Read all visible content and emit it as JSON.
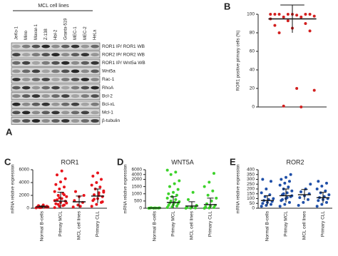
{
  "blot": {
    "panel_label": "A",
    "header": "MCL cell lines",
    "lanes": [
      "JeKo-1",
      "Mino",
      "Mavar-1",
      "Z-138",
      "Hbl-2",
      "Granta-519",
      "MEC-1",
      "MEC-2",
      "HeLa"
    ],
    "rows": [
      "ROR1 IP/ ROR1 WB",
      "ROR2 IP/ ROR2 WB",
      "ROR1 IP/ Wnt5a WB",
      "Wnt5a",
      "Rac-1",
      "RhoA",
      "Bcl-2",
      "Bcl-xL",
      "Mcl-1",
      "β-tubulin"
    ]
  },
  "chart_data": [
    {
      "type": "dot",
      "panel_label": "B",
      "y_label": "ROR1 positive primary cells (%)",
      "color": "#d2201f",
      "ylim": [
        0,
        100
      ],
      "yticks": [
        0,
        20,
        40,
        60,
        80,
        100
      ],
      "groups": [
        {
          "values": [
            100,
            100,
            100,
            100,
            100,
            100,
            100,
            99,
            98,
            97,
            97,
            95,
            93,
            90,
            88,
            85,
            82,
            80,
            20,
            18,
            1,
            0
          ],
          "mean": 95,
          "sd": 15
        }
      ]
    },
    {
      "type": "dot",
      "panel_label": "C",
      "title": "ROR1",
      "y_label": "mRNA relative expression",
      "color": "#e8141c",
      "categories": [
        "Normal B-cells",
        "Primay MCL",
        "MCL cell lines",
        "Primary CLL"
      ],
      "ylim": [
        0,
        6000
      ],
      "yticks": [
        0,
        2000,
        4000,
        6000
      ],
      "groups": [
        {
          "values": [
            50,
            100,
            150,
            200,
            250,
            300,
            400,
            500,
            200,
            100
          ],
          "mean": 200,
          "sd": 150
        },
        {
          "values": [
            100,
            300,
            500,
            700,
            900,
            1100,
            1300,
            1500,
            1800,
            2000,
            2300,
            2600,
            3000,
            3300,
            3700,
            4100,
            4600,
            5200,
            5800,
            800,
            600,
            400,
            1200,
            1600,
            2100
          ],
          "mean": 1100,
          "sd": 1400
        },
        {
          "values": [
            200,
            500,
            900,
            1200,
            1800,
            2000,
            2600,
            300
          ],
          "mean": 1000,
          "sd": 900
        },
        {
          "values": [
            300,
            600,
            900,
            1200,
            1500,
            1800,
            2100,
            2400,
            2700,
            3000,
            3300,
            3600,
            4000,
            4500,
            5000,
            5500,
            1000,
            1400,
            2000,
            2500
          ],
          "mean": 1900,
          "sd": 1100
        }
      ]
    },
    {
      "type": "dot",
      "panel_label": "D",
      "title": "WNT5A",
      "y_label": "mRNA relative expression",
      "color": "#3cd22a",
      "categories": [
        "Normal B-cells",
        "Primay MCL",
        "MCL cell lines",
        "Primary CLL"
      ],
      "ylim": [
        0,
        6000
      ],
      "yticks": [
        0,
        500,
        1000,
        1500,
        2000,
        4000,
        6000
      ],
      "axis_break": 2000,
      "groups": [
        {
          "values": [
            0,
            5,
            10,
            15,
            20,
            25,
            30,
            10
          ],
          "mean": 15,
          "sd": 10
        },
        {
          "values": [
            50,
            100,
            150,
            200,
            250,
            300,
            350,
            400,
            450,
            500,
            600,
            700,
            800,
            900,
            1000,
            1100,
            1300,
            1500,
            1700,
            1900,
            4000,
            5000,
            5800
          ],
          "mean": 400,
          "sd": 400
        },
        {
          "values": [
            0,
            10,
            20,
            50,
            100,
            200,
            600,
            1100
          ],
          "mean": 150,
          "sd": 300
        },
        {
          "values": [
            0,
            20,
            50,
            100,
            150,
            200,
            300,
            500,
            700,
            900,
            1200,
            1500,
            1800,
            4500
          ],
          "mean": 250,
          "sd": 450
        }
      ]
    },
    {
      "type": "dot",
      "panel_label": "E",
      "title": "ROR2",
      "y_label": "mRNA relative expression",
      "color": "#1f4fa8",
      "categories": [
        "Normal B-cells",
        "Primay MCL",
        "MCL cell lines",
        "Primary CLL"
      ],
      "ylim": [
        0,
        400
      ],
      "yticks": [
        0,
        50,
        100,
        150,
        200,
        250,
        300,
        350,
        400
      ],
      "groups": [
        {
          "values": [
            20,
            30,
            40,
            50,
            60,
            70,
            80,
            90,
            100,
            120,
            140,
            160,
            200,
            280,
            300
          ],
          "mean": 80,
          "sd": 50
        },
        {
          "values": [
            20,
            40,
            60,
            80,
            100,
            120,
            140,
            160,
            180,
            200,
            220,
            240,
            260,
            280,
            300,
            320,
            350,
            90,
            110,
            130,
            150
          ],
          "mean": 130,
          "sd": 70
        },
        {
          "values": [
            30,
            60,
            90,
            110,
            130,
            150,
            170,
            200,
            250
          ],
          "mean": 140,
          "sd": 55
        },
        {
          "values": [
            20,
            40,
            60,
            80,
            90,
            100,
            110,
            120,
            140,
            160,
            180,
            200,
            230,
            260,
            280
          ],
          "mean": 110,
          "sd": 55
        }
      ]
    }
  ]
}
